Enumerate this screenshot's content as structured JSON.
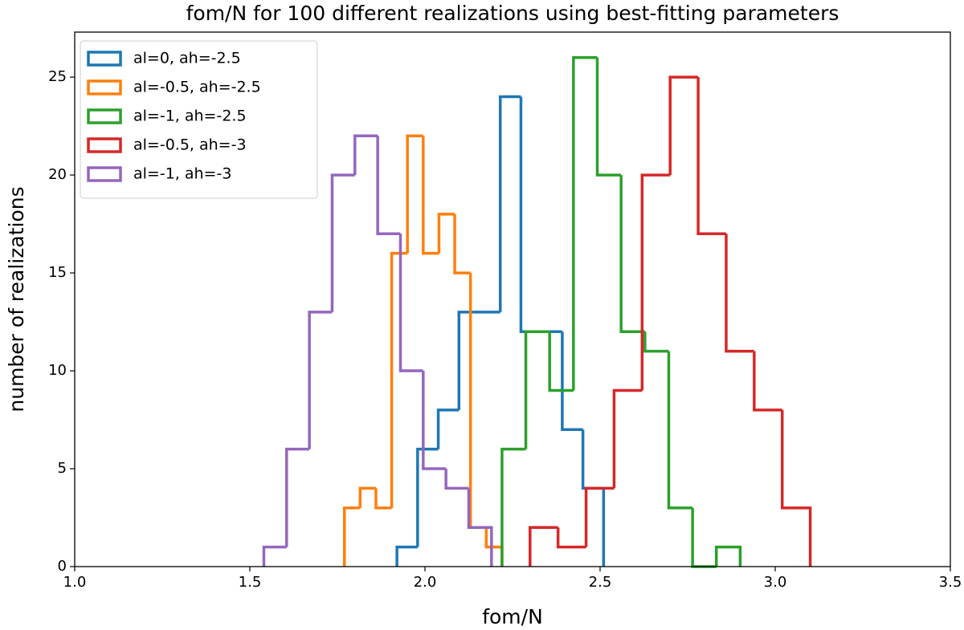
{
  "chart_data": {
    "type": "histogram",
    "title": "fom/N for 100 different realizations using best-fitting parameters",
    "xlabel": "fom/N",
    "ylabel": "number of realizations",
    "xlim": [
      1.0,
      3.5
    ],
    "ylim": [
      0,
      27.3
    ],
    "xticks": [
      {
        "value": 1.0,
        "label": "1.0"
      },
      {
        "value": 1.5,
        "label": "1.5"
      },
      {
        "value": 2.0,
        "label": "2.0"
      },
      {
        "value": 2.5,
        "label": "2.5"
      },
      {
        "value": 3.0,
        "label": "3.0"
      },
      {
        "value": 3.5,
        "label": "3.5"
      }
    ],
    "yticks": [
      0,
      5,
      10,
      15,
      20,
      25
    ],
    "legend": "upper left",
    "series": [
      {
        "name": "al=0, ah=-2.5",
        "color": "#1f77b4",
        "bins": [
          1.92,
          1.979,
          2.038,
          2.097,
          2.156,
          2.215,
          2.274,
          2.333,
          2.392,
          2.451,
          2.51
        ],
        "values": [
          1,
          6,
          8,
          13,
          13,
          24,
          12,
          12,
          7,
          4
        ]
      },
      {
        "name": "al=-0.5, ah=-2.5",
        "color": "#ff7f0e",
        "bins": [
          1.77,
          1.815,
          1.86,
          1.905,
          1.95,
          1.995,
          2.04,
          2.085,
          2.13,
          2.175,
          2.22
        ],
        "values": [
          3,
          4,
          3,
          16,
          22,
          16,
          18,
          15,
          2,
          1
        ]
      },
      {
        "name": "al=-1, ah=-2.5",
        "color": "#2ca02c",
        "bins": [
          2.22,
          2.288,
          2.356,
          2.424,
          2.492,
          2.56,
          2.628,
          2.696,
          2.764,
          2.832,
          2.9
        ],
        "values": [
          6,
          12,
          9,
          26,
          20,
          12,
          11,
          3,
          0,
          1
        ]
      },
      {
        "name": "al=-0.5, ah=-3",
        "color": "#d62728",
        "bins": [
          2.3,
          2.38,
          2.46,
          2.54,
          2.62,
          2.7,
          2.78,
          2.86,
          2.94,
          3.02,
          3.1
        ],
        "values": [
          2,
          1,
          4,
          9,
          20,
          25,
          17,
          11,
          8,
          3
        ]
      },
      {
        "name": "al=-1, ah=-3",
        "color": "#9467bd",
        "bins": [
          1.54,
          1.605,
          1.67,
          1.735,
          1.8,
          1.865,
          1.93,
          1.995,
          2.06,
          2.125,
          2.19
        ],
        "values": [
          1,
          6,
          13,
          20,
          22,
          17,
          10,
          5,
          4,
          2
        ]
      }
    ]
  }
}
